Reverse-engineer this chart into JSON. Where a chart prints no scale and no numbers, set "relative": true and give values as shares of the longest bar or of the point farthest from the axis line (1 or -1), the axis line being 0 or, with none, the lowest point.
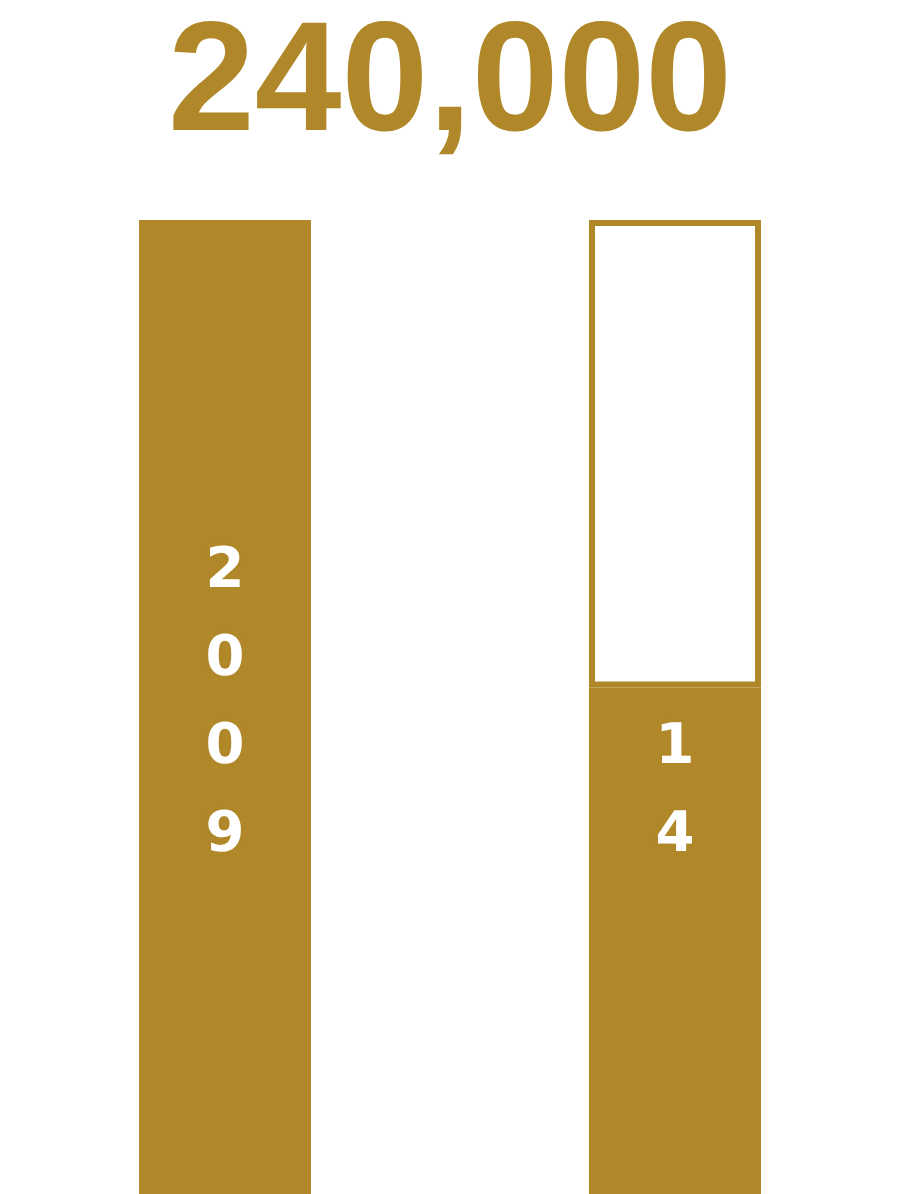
{
  "chart_data": {
    "type": "bar",
    "title": "240,000",
    "relative": true,
    "stacked": true,
    "categories": [
      "2009",
      "2014"
    ],
    "series": [
      {
        "color": "#b08829",
        "values": [
          1,
          0.52
        ]
      },
      {
        "color": "#ffffff",
        "values": [
          null,
          0.48
        ]
      }
    ]
  }
}
